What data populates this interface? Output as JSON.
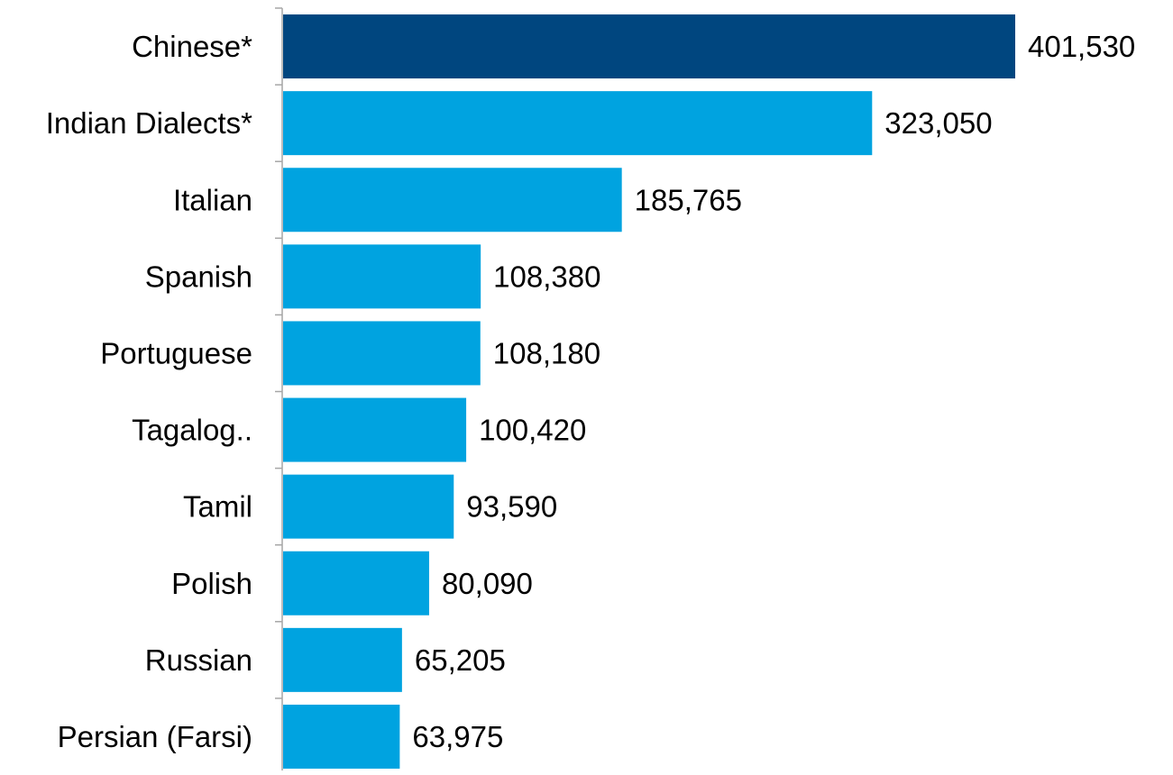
{
  "chart_data": {
    "type": "bar",
    "orientation": "horizontal",
    "title": "",
    "xlabel": "",
    "ylabel": "",
    "categories": [
      "Chinese*",
      "Indian Dialects*",
      "Italian",
      "Spanish",
      "Portuguese",
      "Tagalog..",
      "Tamil",
      "Polish",
      "Russian",
      "Persian (Farsi)"
    ],
    "values": [
      401530,
      323050,
      185765,
      108380,
      108180,
      100420,
      93590,
      80090,
      65205,
      63975
    ],
    "data_labels": [
      "401,530",
      "323,050",
      "185,765",
      "108,380",
      "108,180",
      "100,420",
      "93,590",
      "80,090",
      "65,205",
      "63,975"
    ],
    "highlight_index": 0,
    "colors": {
      "highlight": "#00467F",
      "bar": "#00A3E0",
      "axis": "#A6A6A6",
      "text": "#000000"
    },
    "grid": false,
    "legend": "none"
  }
}
